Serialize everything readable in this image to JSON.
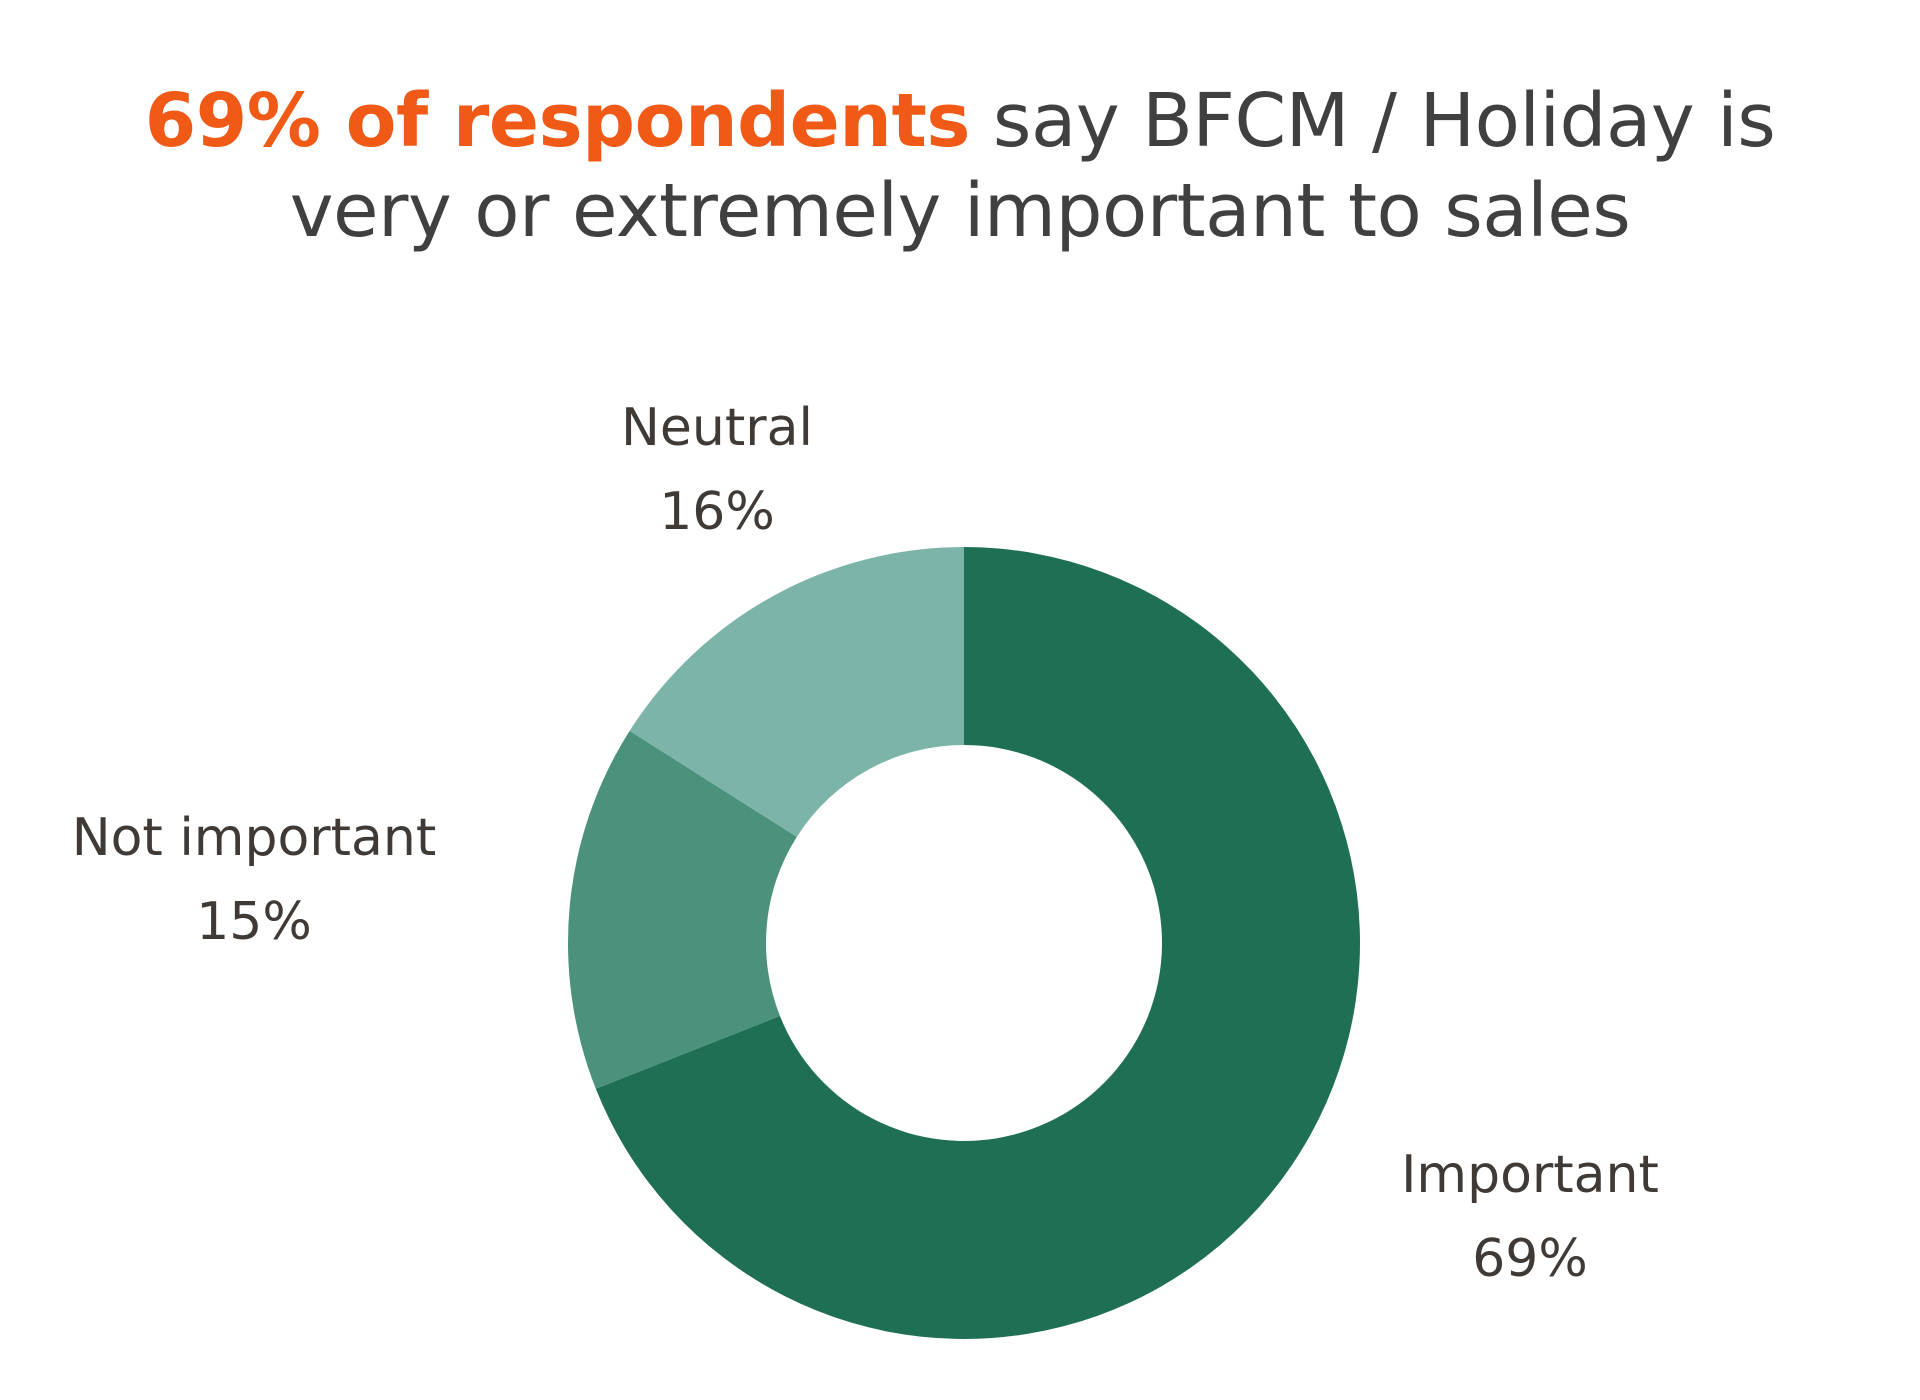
{
  "title": {
    "highlight": "69% of respondents",
    "line1_rest": " say BFCM / Holiday is",
    "line2": "very or extremely important to sales"
  },
  "colors": {
    "highlight": "#f05a16",
    "title_text": "#404040",
    "label_text": "#3f3a36"
  },
  "chart_data": {
    "type": "pie",
    "variant": "donut",
    "title": "69% of respondents say BFCM / Holiday is very or extremely important to sales",
    "slices": [
      {
        "label": "Important",
        "value": 69,
        "value_label": "69%",
        "color": "#1e6f53"
      },
      {
        "label": "Not important",
        "value": 15,
        "value_label": "15%",
        "color": "#4b917c"
      },
      {
        "label": "Neutral",
        "value": 16,
        "value_label": "16%",
        "color": "#7cb4a9"
      }
    ],
    "start_angle": "top",
    "direction": "clockwise",
    "legend": "none"
  }
}
